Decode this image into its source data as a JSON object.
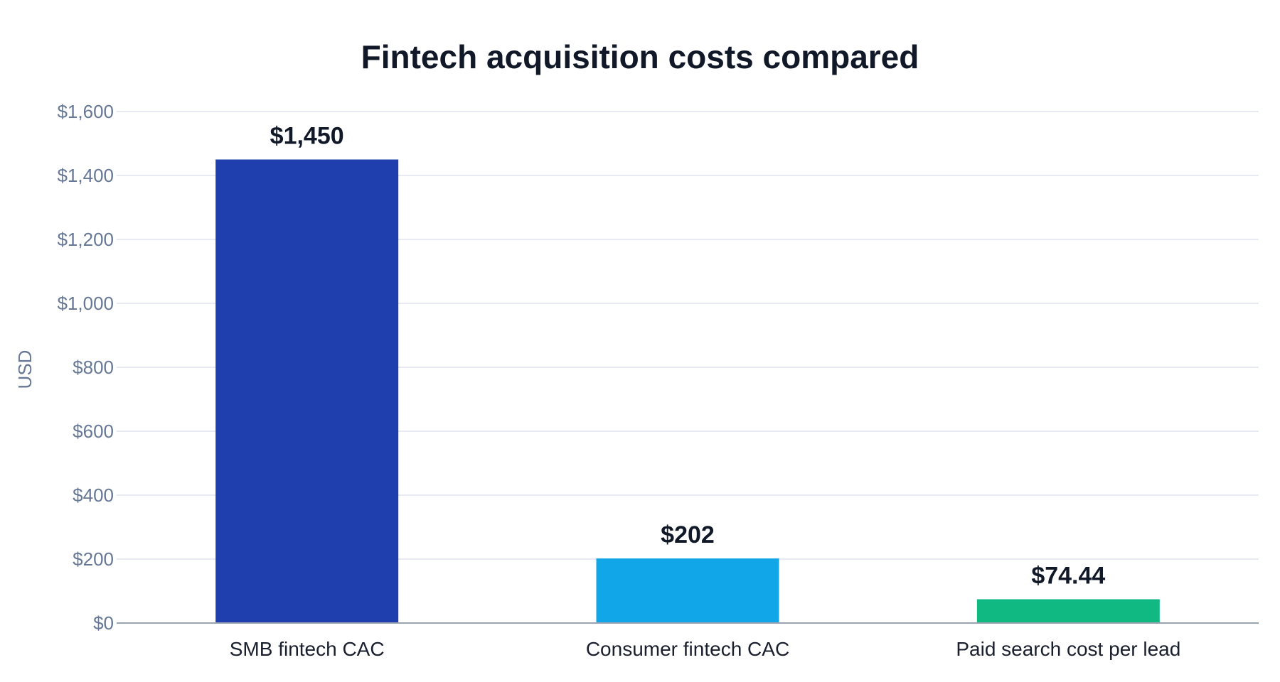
{
  "chart_data": {
    "type": "bar",
    "title": "Fintech acquisition costs compared",
    "xlabel": "",
    "ylabel": "USD",
    "categories": [
      "SMB fintech CAC",
      "Consumer fintech CAC",
      "Paid search cost per lead"
    ],
    "values": [
      1450,
      202,
      74.44
    ],
    "data_labels": [
      "$1,450",
      "$202",
      "$74.44"
    ],
    "colors": [
      "#1f3fae",
      "#10a6e8",
      "#10b981"
    ],
    "ylim": [
      0,
      1600
    ],
    "y_ticks": [
      0,
      200,
      400,
      600,
      800,
      1000,
      1200,
      1400,
      1600
    ],
    "y_tick_labels": [
      "$0",
      "$200",
      "$400",
      "$600",
      "$800",
      "$1,000",
      "$1,200",
      "$1,400",
      "$1,600"
    ],
    "grid": true,
    "legend": "none"
  }
}
